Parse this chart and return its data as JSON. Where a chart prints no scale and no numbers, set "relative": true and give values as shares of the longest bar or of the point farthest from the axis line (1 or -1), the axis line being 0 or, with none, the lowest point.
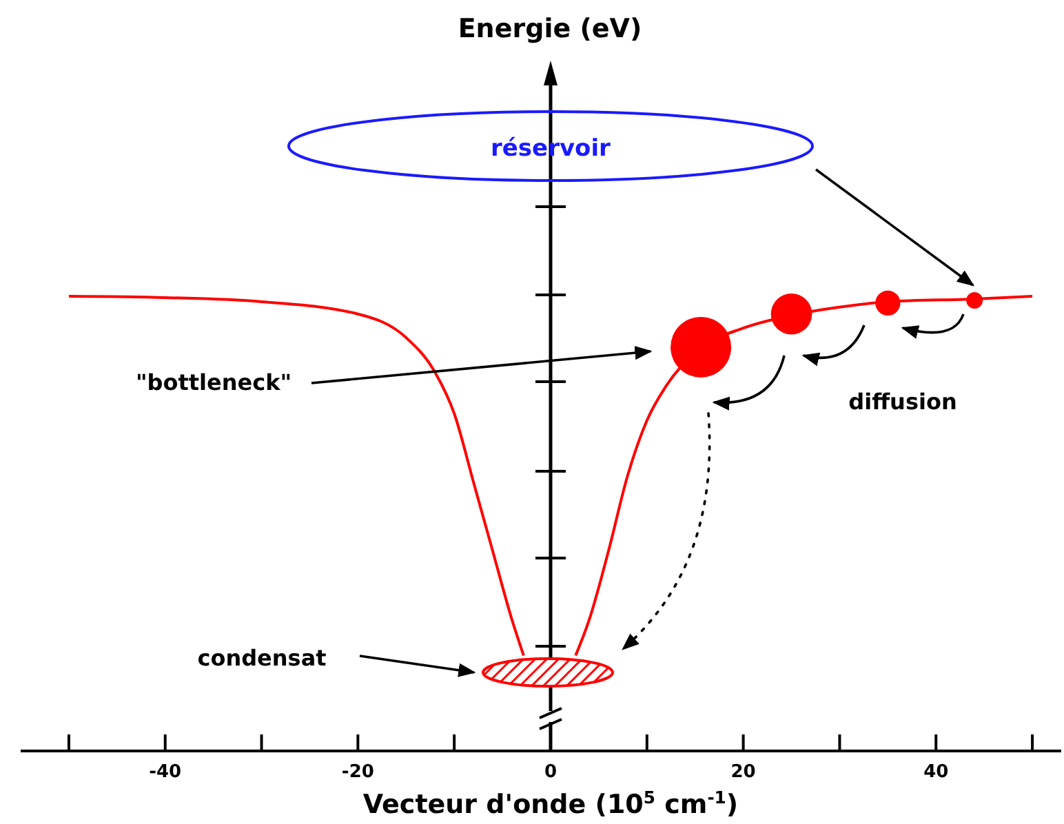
{
  "chart_data": {
    "type": "line",
    "relative": true,
    "tick_labels": "x",
    "xlabel": "Vecteur d'onde (10$^{5}$ cm$^{-1}$)",
    "annotations": [
      "réservoir",
      "\"bottleneck\"",
      "diffusion",
      "condensat",
      "Energie (eV)"
    ],
    "xlim": [
      -55,
      53
    ],
    "xticks": [
      {
        "value": -50,
        "label": null
      },
      -40,
      {
        "value": -30,
        "label": null
      },
      -20,
      {
        "value": -10,
        "label": null
      },
      0,
      {
        "value": 10,
        "label": null
      },
      20,
      {
        "value": 30,
        "label": null
      },
      40,
      {
        "value": 50,
        "label": null
      }
    ],
    "series": [
      {
        "color": "#ff0000",
        "marker": "none",
        "x": [
          -50,
          -40,
          -30,
          -20,
          -15,
          -12,
          -10,
          -8,
          -6,
          -4,
          -2.8,
          0,
          2.6,
          4,
          6,
          8,
          10,
          12,
          15.5,
          20,
          25,
          30,
          35,
          44,
          50
        ],
        "values": [
          1.0,
          0.997,
          0.988,
          0.961,
          0.909,
          0.833,
          0.742,
          0.591,
          0.439,
          0.288,
          0.21,
          null,
          0.21,
          0.288,
          0.439,
          0.606,
          0.727,
          0.803,
          0.885,
          0.93,
          0.958,
          0.976,
          0.988,
          0.994,
          1.0
        ]
      },
      {
        "type": "bubble",
        "color": "#ff0000",
        "x": [
          15.6,
          25,
          35,
          44
        ],
        "values": [
          0.888,
          0.961,
          0.985,
          0.991
        ],
        "sizes": [
          1,
          0.46,
          0.17,
          0.074
        ]
      }
    ]
  }
}
